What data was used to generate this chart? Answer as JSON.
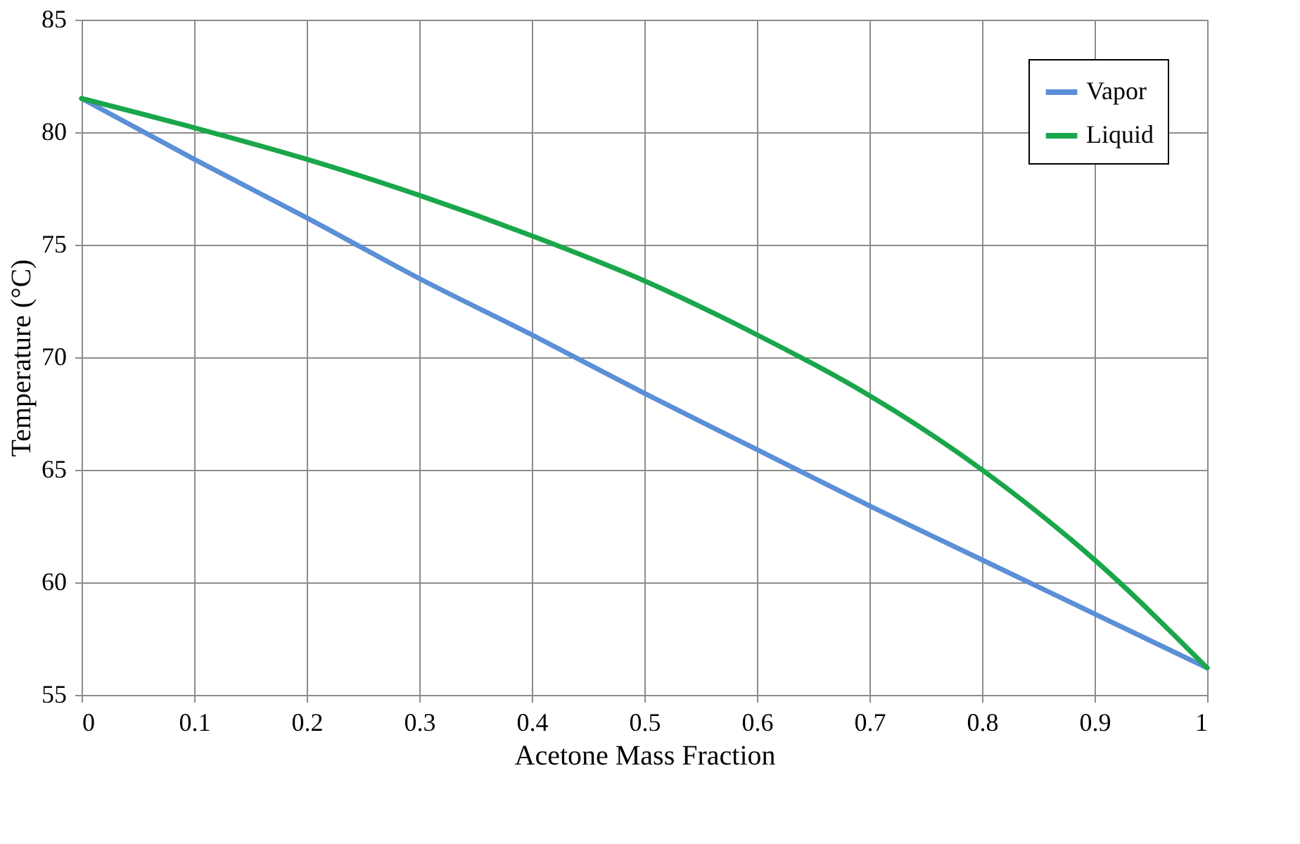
{
  "chart_data": {
    "type": "line",
    "xlabel": "Acetone Mass Fraction",
    "ylabel": "Temperature (°C)",
    "x": [
      0,
      0.1,
      0.2,
      0.3,
      0.4,
      0.5,
      0.6,
      0.7,
      0.8,
      0.9,
      1
    ],
    "xlim": [
      0,
      1
    ],
    "xticks": [
      0,
      0.1,
      0.2,
      0.3,
      0.4,
      0.5,
      0.6,
      0.7,
      0.8,
      0.9,
      1
    ],
    "ylim": [
      55,
      85
    ],
    "yticks": [
      55,
      60,
      65,
      70,
      75,
      80,
      85
    ],
    "grid": true,
    "legend": "top right",
    "marker": "none",
    "line_style": "solid",
    "series": [
      {
        "name": "Vapor",
        "color": "#5b8fd6",
        "values": [
          81.5,
          78.8,
          76.2,
          73.5,
          71.0,
          68.4,
          65.9,
          63.4,
          61.0,
          58.6,
          56.2
        ]
      },
      {
        "name": "Liquid",
        "color": "#1aa64a",
        "values": [
          81.5,
          80.2,
          78.8,
          77.2,
          75.4,
          73.4,
          71.0,
          68.3,
          65.0,
          61.0,
          56.2
        ]
      }
    ]
  }
}
